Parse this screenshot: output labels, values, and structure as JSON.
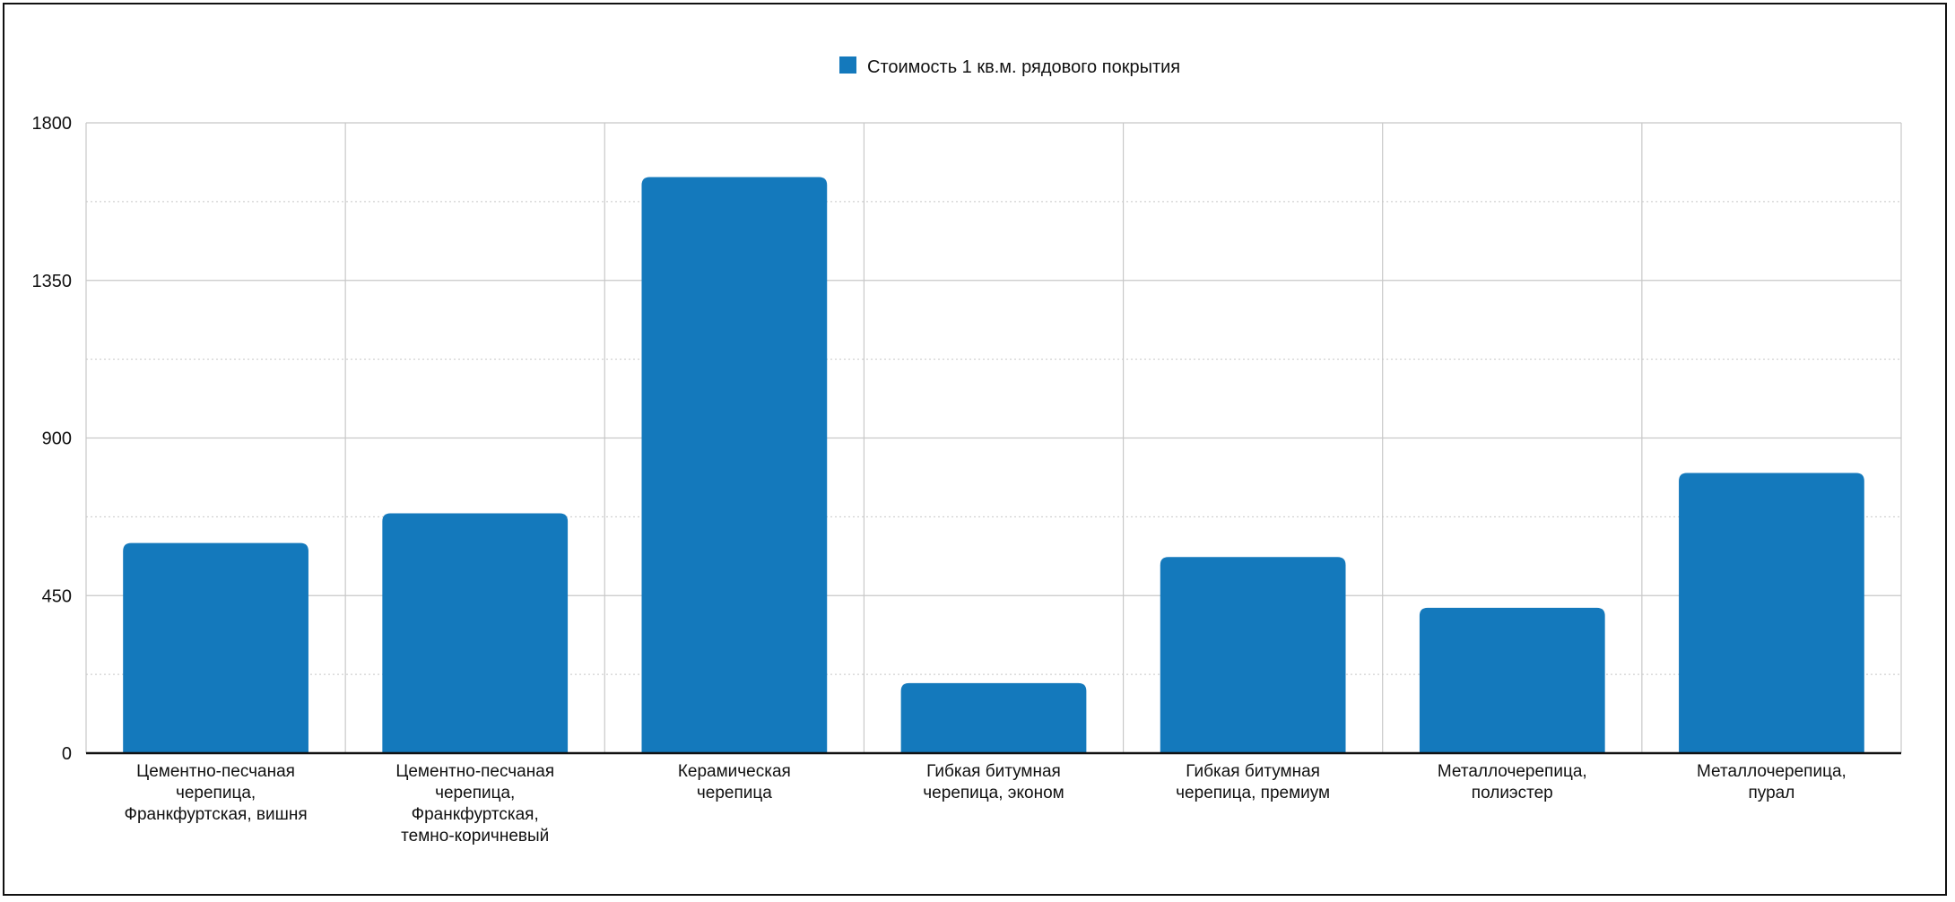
{
  "chart_data": {
    "type": "bar",
    "categories": [
      [
        "Цементно-песчаная",
        "черепица,",
        "Франкфуртская, вишня"
      ],
      [
        "Цементно-песчаная",
        "черепица,",
        "Франкфуртская,",
        "темно-коричневый"
      ],
      [
        "Керамическая",
        "черепица"
      ],
      [
        "Гибкая битумная",
        "черепица, эконом"
      ],
      [
        "Гибкая битумная",
        "черепица, премиум"
      ],
      [
        "Металлочерепица,",
        "полиэстер"
      ],
      [
        "Металлочерепица,",
        "пурал"
      ]
    ],
    "series": [
      {
        "name": "Стоимость 1 кв.м. рядового покрытия",
        "color": "#1479bc",
        "values": [
          600,
          685,
          1645,
          200,
          560,
          415,
          800
        ]
      }
    ],
    "ylim": [
      0,
      1800
    ],
    "yticks": [
      "0",
      "450",
      "900",
      "1350",
      "1800"
    ],
    "grid": true,
    "legend_position": "top-center"
  }
}
